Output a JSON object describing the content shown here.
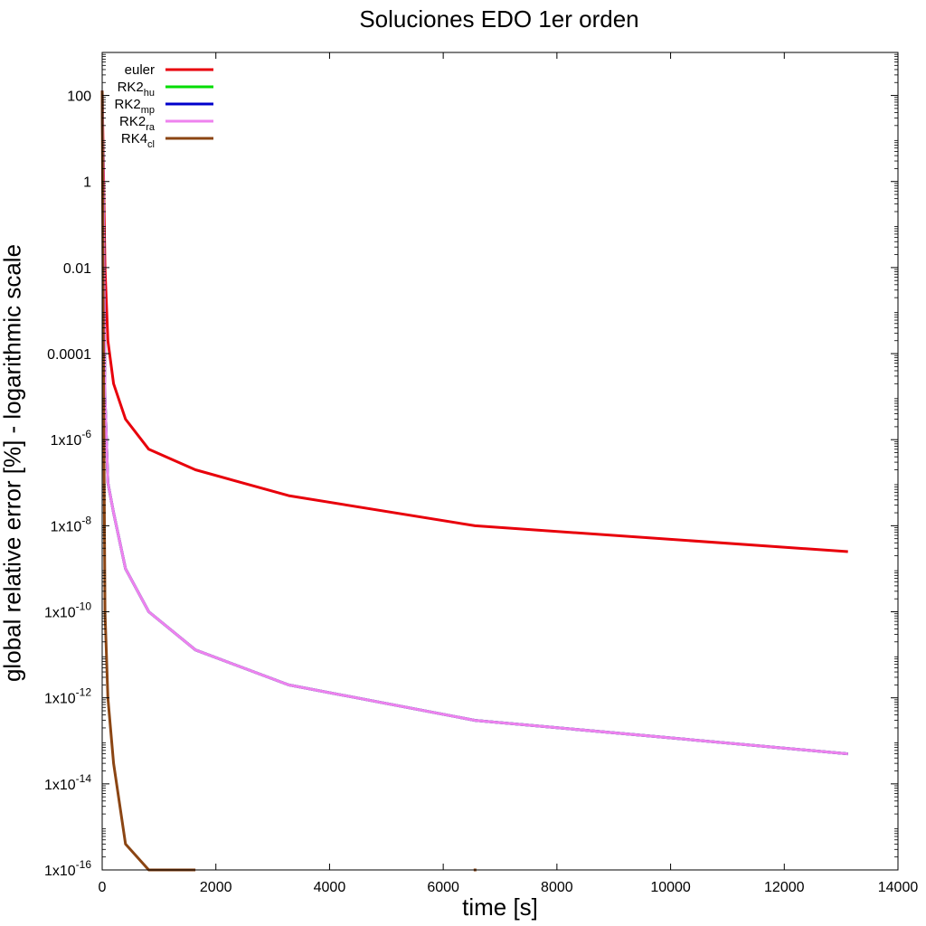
{
  "chart_data": {
    "type": "line",
    "title": "Soluciones EDO 1er orden",
    "xlabel": "time [s]",
    "ylabel": "global relative error [%] - logarithmic scale",
    "xlim": [
      0,
      14000
    ],
    "ylim": [
      1e-16,
      1000
    ],
    "yscale": "log",
    "x_ticks": [
      0,
      2000,
      4000,
      6000,
      8000,
      10000,
      12000,
      14000
    ],
    "x_tick_labels": [
      "0",
      "2000",
      "4000",
      "6000",
      "8000",
      "10000",
      "12000",
      "14000"
    ],
    "y_ticks": [
      {
        "value": 100,
        "base": "100",
        "exp": ""
      },
      {
        "value": 1,
        "base": "1",
        "exp": ""
      },
      {
        "value": 0.01,
        "base": "0.01",
        "exp": ""
      },
      {
        "value": 0.0001,
        "base": "0.0001",
        "exp": ""
      },
      {
        "value": 1e-06,
        "base": "1x10",
        "exp": "-6"
      },
      {
        "value": 1e-08,
        "base": "1x10",
        "exp": "-8"
      },
      {
        "value": 1e-10,
        "base": "1x10",
        "exp": "-10"
      },
      {
        "value": 1e-12,
        "base": "1x10",
        "exp": "-12"
      },
      {
        "value": 1e-14,
        "base": "1x10",
        "exp": "-14"
      },
      {
        "value": 1e-16,
        "base": "1x10",
        "exp": "-16"
      }
    ],
    "grid": false,
    "legend_position": "top-left",
    "series": [
      {
        "name": "euler",
        "sub": "",
        "color": "#e8000b",
        "x": [
          0,
          25,
          50,
          100,
          200,
          410,
          820,
          1640,
          3280,
          6560,
          13120
        ],
        "y": [
          130,
          1,
          0.01,
          0.0002,
          2e-05,
          3e-06,
          6e-07,
          2e-07,
          5e-08,
          1e-08,
          2.5e-09
        ]
      },
      {
        "name": "RK2",
        "sub": "hu",
        "color": "#00dd00",
        "x": [
          0,
          25,
          50,
          100,
          200,
          410,
          820,
          1640,
          3280,
          6560,
          13120
        ],
        "y": [
          130,
          0.05,
          1e-05,
          1e-07,
          2e-08,
          1e-09,
          1e-10,
          1.3e-11,
          2e-12,
          3e-13,
          5e-14
        ]
      },
      {
        "name": "RK2",
        "sub": "mp",
        "color": "#0000cc",
        "x": [
          0,
          25,
          50,
          100,
          200,
          410,
          820,
          1640,
          3280,
          6560,
          13120
        ],
        "y": [
          130,
          0.05,
          1e-05,
          1e-07,
          2e-08,
          1e-09,
          1e-10,
          1.3e-11,
          2e-12,
          3e-13,
          5e-14
        ]
      },
      {
        "name": "RK2",
        "sub": "ra",
        "color": "#ee82ee",
        "x": [
          0,
          25,
          50,
          100,
          200,
          410,
          820,
          1640,
          3280,
          6560,
          13120
        ],
        "y": [
          130,
          0.05,
          1e-05,
          1e-07,
          2e-08,
          1e-09,
          1e-10,
          1.3e-11,
          2e-12,
          3e-13,
          5e-14
        ]
      },
      {
        "name": "RK4",
        "sub": "cl",
        "color": "#8b4513",
        "x": [
          0,
          25,
          50,
          100,
          200,
          410,
          820,
          1640
        ],
        "y": [
          130,
          1e-05,
          1e-10,
          1e-12,
          3e-14,
          4e-16,
          1e-16,
          1e-16
        ],
        "extra_points": [
          {
            "x": 6560,
            "y": 1e-16
          }
        ]
      }
    ]
  }
}
